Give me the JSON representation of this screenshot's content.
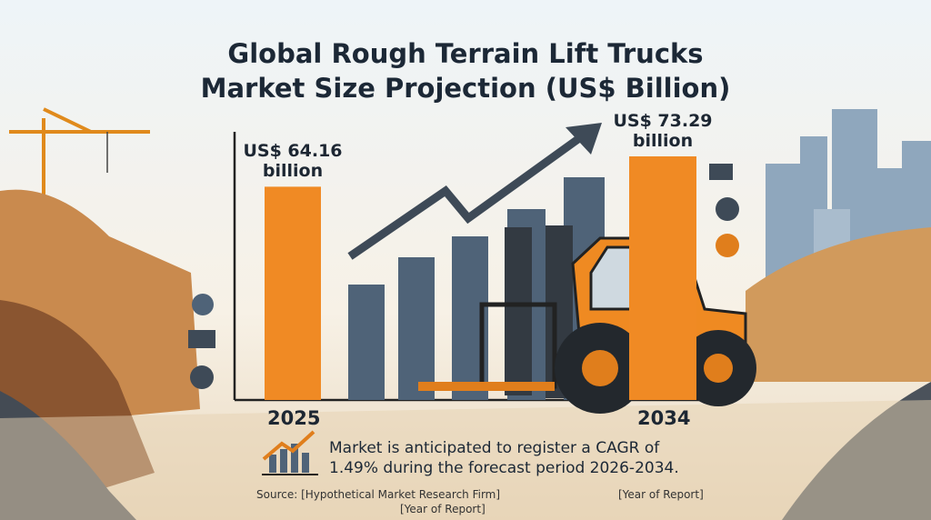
{
  "chart_data": {
    "type": "bar",
    "title": "Global Rough Terrain Lift Trucks Market Size Projection (US$ Billion)",
    "categories": [
      "2025",
      "2034"
    ],
    "values": [
      64.16,
      73.29
    ],
    "value_labels": [
      "US$ 64.16 billion",
      "US$ 73.29 billion"
    ],
    "color": "#f08a24",
    "annotation": "Market is anticipated to register a CAGR of 1.49% during the forecast period 2026-2034.",
    "sources": [
      "Source: [Hypothetical Market Research Firm]",
      "[Year of Report]",
      "[Year of Report]"
    ]
  }
}
